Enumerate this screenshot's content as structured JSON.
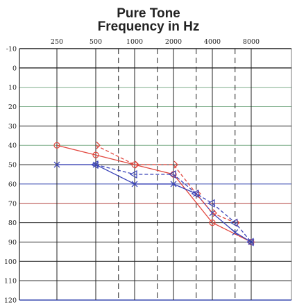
{
  "chart_data": {
    "type": "line",
    "title": "Pure Tone",
    "subtitle": "Frequency in Hz",
    "x_tick_labels": [
      "250",
      "500",
      "1000",
      "2000",
      "4000",
      "8000"
    ],
    "x_major_hz": [
      250,
      500,
      1000,
      2000,
      4000,
      8000
    ],
    "x_inter_hz": [
      750,
      1500,
      3000,
      6000
    ],
    "y_tick_labels": [
      "-10",
      "0",
      "10",
      "20",
      "30",
      "40",
      "50",
      "60",
      "70",
      "80",
      "90",
      "100",
      "110",
      "120"
    ],
    "ylim": [
      -10,
      120
    ],
    "y_inverted": true,
    "x_scale": "log",
    "grid": true,
    "colors": {
      "red": "#e2483f",
      "blue": "#3b44b8",
      "purple": "#8e3fae",
      "grid_dark": "#222222",
      "grid_green": "#7fae8a",
      "grid_red": "#b2423f",
      "grid_blue": "#3a4cb0"
    },
    "series": [
      {
        "marker": "circle",
        "color": "#e2483f",
        "dash": "solid",
        "x": [
          250,
          500,
          1000,
          2000,
          4000,
          8000
        ],
        "y": [
          40,
          45,
          50,
          55,
          80,
          90
        ]
      },
      {
        "marker": "x",
        "color": "#3b44b8",
        "dash": "solid",
        "x": [
          250,
          500,
          1000,
          2000,
          3000,
          4000,
          6000,
          8000
        ],
        "y": [
          50,
          50,
          60,
          60,
          65,
          75,
          85,
          90
        ]
      },
      {
        "marker": "bracket",
        "color": "#e2483f",
        "dash": "dashed",
        "x": [
          500,
          1000,
          2000,
          3000,
          4000,
          6000
        ],
        "y": [
          40,
          50,
          50,
          65,
          75,
          80
        ]
      },
      {
        "marker": "triangle",
        "color": "#3b44b8",
        "dash": "dashed",
        "x": [
          500,
          1000,
          2000,
          3000,
          4000,
          6000,
          8000
        ],
        "y": [
          50,
          55,
          55,
          65,
          70,
          80,
          90
        ]
      }
    ]
  }
}
